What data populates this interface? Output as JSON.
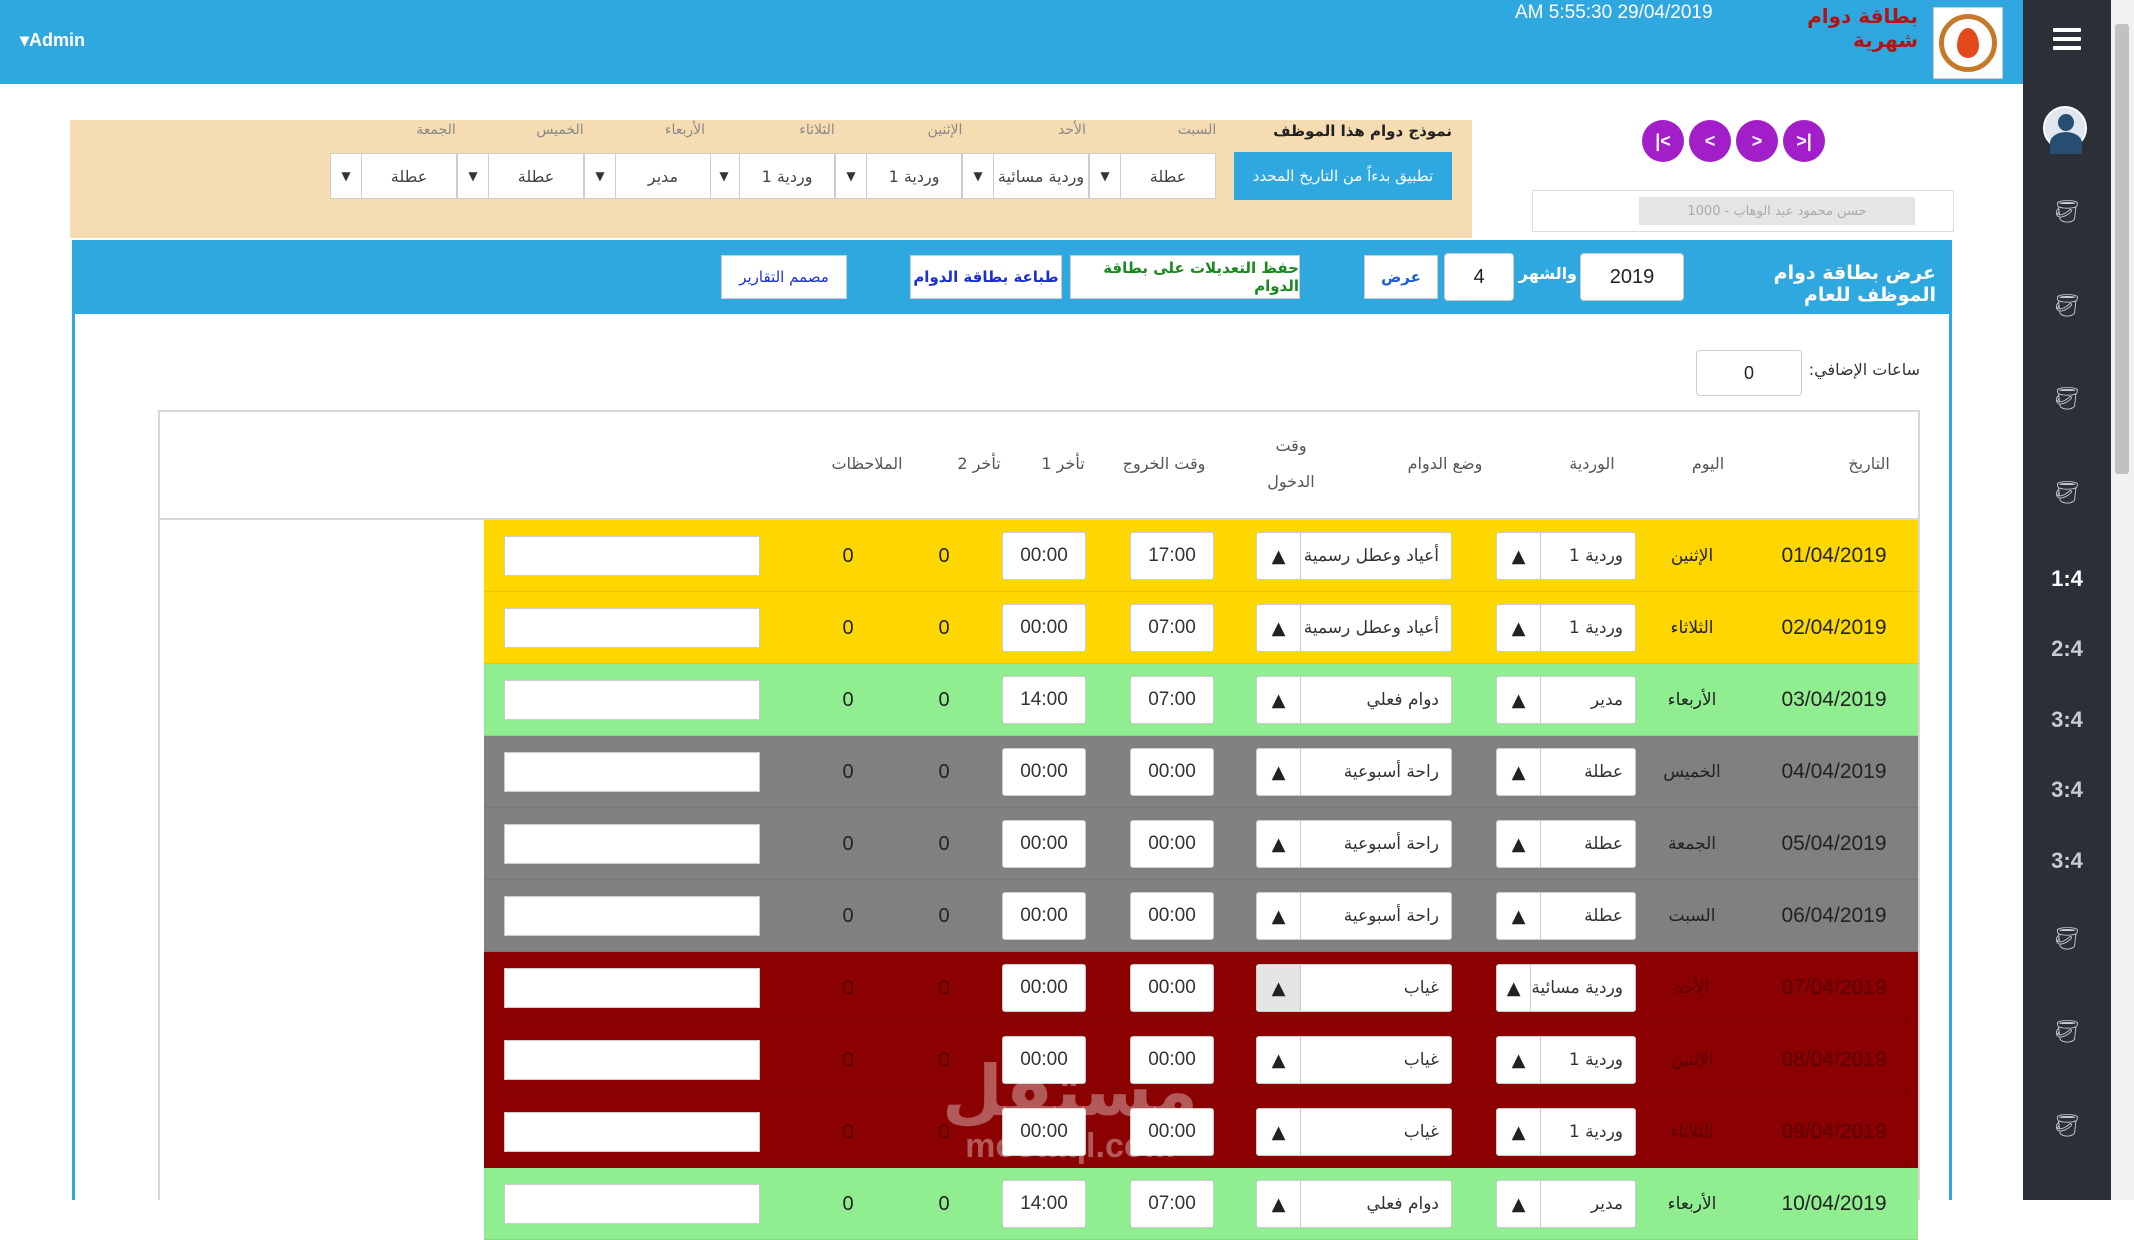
{
  "topbar": {
    "admin_label": "Admin",
    "datetime": "AM 5:55:30 29/04/2019",
    "title": "بطاقة دوام شهرية"
  },
  "sidebar": {
    "items": [
      "1:4",
      "2:4",
      "3:4",
      "3:4",
      "3:4"
    ]
  },
  "template": {
    "title": "نموذج دوام هذا الموظف",
    "apply_button": "تطبيق بدءاً من التاريخ المحدد",
    "days": [
      {
        "label": "السبت",
        "value": "عطلة"
      },
      {
        "label": "الأحد",
        "value": "وردية مسائية"
      },
      {
        "label": "الإثنين",
        "value": "وردية 1"
      },
      {
        "label": "الثلاثاء",
        "value": "وردية 1"
      },
      {
        "label": "الأربعاء",
        "value": "مدير"
      },
      {
        "label": "الخميس",
        "value": "عطلة"
      },
      {
        "label": "الجمعة",
        "value": "عطلة"
      }
    ]
  },
  "nav": {
    "first": "|<",
    "prev": "<",
    "next": ">",
    "last": ">|"
  },
  "employee_select": {
    "value": "1000 - حسن محمود عبد الوهاب"
  },
  "header": {
    "title": "عرض بطاقة دوام الموظف للعام",
    "year": "2019",
    "month_label": "والشهر",
    "month": "4",
    "show_button": "عرض",
    "save_button": "حفظ التعديلات على بطاقة الدوام",
    "print_button": "طباعة بطاقة الدوام",
    "designer_button": "مصمم التقارير"
  },
  "overtime": {
    "label": "ساعات الإضافي:",
    "value": "0"
  },
  "table": {
    "columns": {
      "date": "التاريخ",
      "day": "اليوم",
      "shift": "الوردية",
      "status": "وضع الدوام",
      "in_time_1": "وقت",
      "in_time_2": "الدخول",
      "out_time": "وقت الخروج",
      "late1": "تأخر 1",
      "late2": "تأخر 2",
      "notes": "الملاحظات"
    },
    "rows": [
      {
        "date": "01/04/2019",
        "day": "الإثنين",
        "shift": "وردية 1",
        "status": "أعياد وعطل رسمية",
        "in": "17:00",
        "out": "00:00",
        "late1": "0",
        "late2": "0",
        "color": "#ffd700"
      },
      {
        "date": "02/04/2019",
        "day": "الثلاثاء",
        "shift": "وردية 1",
        "status": "أعياد وعطل رسمية",
        "in": "07:00",
        "out": "00:00",
        "late1": "0",
        "late2": "0",
        "color": "#ffd700"
      },
      {
        "date": "03/04/2019",
        "day": "الأربعاء",
        "shift": "مدير",
        "status": "دوام فعلي",
        "in": "07:00",
        "out": "14:00",
        "late1": "0",
        "late2": "0",
        "color": "#90ee90"
      },
      {
        "date": "04/04/2019",
        "day": "الخميس",
        "shift": "عطلة",
        "status": "راحة أسبوعية",
        "in": "00:00",
        "out": "00:00",
        "late1": "0",
        "late2": "0",
        "color": "#808080"
      },
      {
        "date": "05/04/2019",
        "day": "الجمعة",
        "shift": "عطلة",
        "status": "راحة أسبوعية",
        "in": "00:00",
        "out": "00:00",
        "late1": "0",
        "late2": "0",
        "color": "#808080"
      },
      {
        "date": "06/04/2019",
        "day": "السبت",
        "shift": "عطلة",
        "status": "راحة أسبوعية",
        "in": "00:00",
        "out": "00:00",
        "late1": "0",
        "late2": "0",
        "color": "#808080"
      },
      {
        "date": "07/04/2019",
        "day": "الأحد",
        "shift": "وردية مسائية",
        "status": "غياب",
        "in": "00:00",
        "out": "00:00",
        "late1": "0",
        "late2": "0",
        "color": "#8b0000"
      },
      {
        "date": "08/04/2019",
        "day": "الإثنين",
        "shift": "وردية 1",
        "status": "غياب",
        "in": "00:00",
        "out": "00:00",
        "late1": "0",
        "late2": "0",
        "color": "#8b0000"
      },
      {
        "date": "09/04/2019",
        "day": "الثلاثاء",
        "shift": "وردية 1",
        "status": "غياب",
        "in": "00:00",
        "out": "00:00",
        "late1": "0",
        "late2": "0",
        "color": "#8b0000"
      },
      {
        "date": "10/04/2019",
        "day": "الأربعاء",
        "shift": "مدير",
        "status": "دوام فعلي",
        "in": "07:00",
        "out": "14:00",
        "late1": "0",
        "late2": "0",
        "color": "#90ee90"
      }
    ]
  },
  "watermark": {
    "line1": "مستقل",
    "line2": "mostaql.com"
  }
}
